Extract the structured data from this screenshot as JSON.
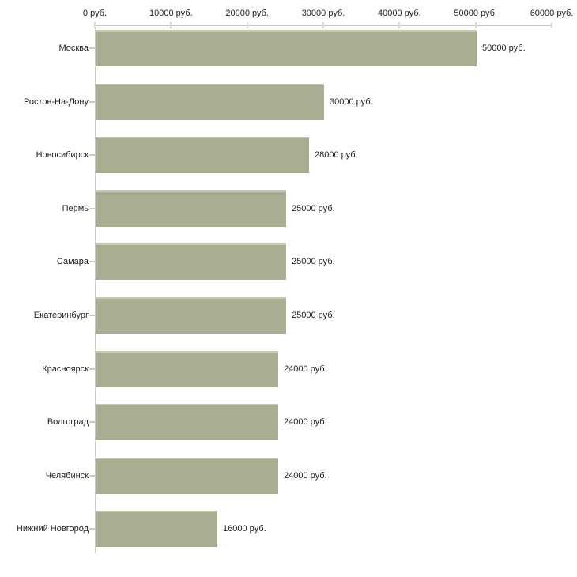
{
  "chart_data": {
    "type": "bar",
    "orientation": "horizontal",
    "title": "",
    "xlabel": "",
    "ylabel": "",
    "categories": [
      "Москва",
      "Ростов-На-Дону",
      "Новосибирск",
      "Пермь",
      "Самара",
      "Екатеринбург",
      "Красноярск",
      "Волгоград",
      "Челябинск",
      "Нижний Новгород"
    ],
    "values": [
      50000,
      30000,
      28000,
      25000,
      25000,
      25000,
      24000,
      24000,
      24000,
      16000
    ],
    "value_labels": [
      "50000 руб.",
      "30000 руб.",
      "28000 руб.",
      "25000 руб.",
      "25000 руб.",
      "25000 руб.",
      "24000 руб.",
      "24000 руб.",
      "24000 руб.",
      "16000 руб."
    ],
    "x_axis": {
      "position": "top",
      "min": 0,
      "max": 60000,
      "tick_values": [
        0,
        10000,
        20000,
        30000,
        40000,
        50000,
        60000
      ],
      "tick_labels": [
        "0 руб.",
        "10000 руб.",
        "20000 руб.",
        "30000 руб.",
        "40000 руб.",
        "50000 руб.",
        "60000 руб."
      ]
    },
    "grid": false,
    "legend": false,
    "colors": {
      "bar_fill": "#a9ae93",
      "bar_top_edge": "#c6c9af",
      "axis_line": "#c9c9c9",
      "x_tick_mark": "#d9dbc5",
      "y_tick_mark": "#c9cdb2",
      "text": "#1f1f1f",
      "background": "#ffffff"
    }
  }
}
